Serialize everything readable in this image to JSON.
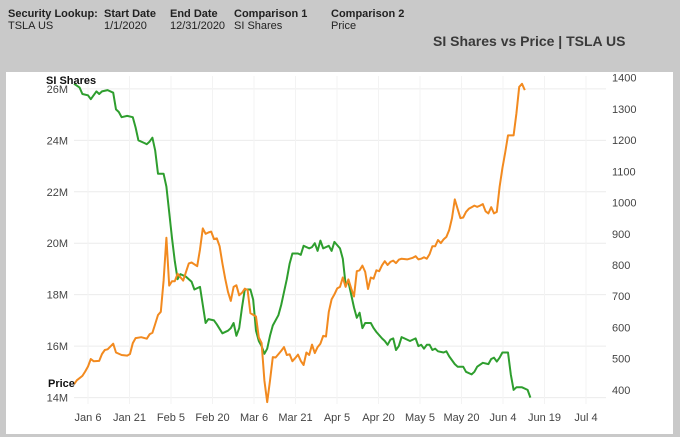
{
  "header": {
    "fields": [
      {
        "label": "Security Lookup:",
        "value": "TSLA US"
      },
      {
        "label": "Start Date",
        "value": "1/1/2020"
      },
      {
        "label": "End Date",
        "value": "12/31/2020"
      },
      {
        "label": "Comparison 1",
        "value": "SI Shares"
      },
      {
        "label": "Comparison 2",
        "value": "Price"
      }
    ]
  },
  "chart_data": {
    "type": "line",
    "title": "SI Shares vs Price | TSLA US",
    "xlabel": "",
    "x_ticks": [
      "Jan 6",
      "Jan 21",
      "Feb 5",
      "Feb 20",
      "Mar 6",
      "Mar 21",
      "Apr 5",
      "Apr 20",
      "May 5",
      "May 20",
      "Jun 4",
      "Jun 19",
      "Jul 4"
    ],
    "x_range_days": [
      0,
      190
    ],
    "left_axis": {
      "label": "SI Shares",
      "ticks": [
        "26M",
        "24M",
        "22M",
        "20M",
        "18M",
        "16M",
        "14M"
      ],
      "ylim": [
        13.75,
        26.5
      ],
      "unit": "M"
    },
    "right_axis": {
      "label": "Price",
      "ticks": [
        "1400",
        "1300",
        "1200",
        "1100",
        "1000",
        "900",
        "800",
        "700",
        "600",
        "500",
        "400"
      ],
      "ylim": [
        355,
        1405
      ]
    },
    "series": [
      {
        "name": "SI Shares",
        "axis": "left",
        "color": "#2e9e2e",
        "points": [
          [
            0,
            26.2
          ],
          [
            2,
            26.05
          ],
          [
            3,
            25.8
          ],
          [
            5,
            25.75
          ],
          [
            6,
            25.6
          ],
          [
            8,
            25.9
          ],
          [
            9,
            25.8
          ],
          [
            10,
            25.9
          ],
          [
            12,
            25.95
          ],
          [
            14,
            25.85
          ],
          [
            15,
            25.2
          ],
          [
            16,
            25.1
          ],
          [
            17,
            24.9
          ],
          [
            19,
            24.95
          ],
          [
            21,
            24.9
          ],
          [
            22,
            24.5
          ],
          [
            23,
            24.0
          ],
          [
            25,
            23.9
          ],
          [
            26,
            23.85
          ],
          [
            27,
            23.95
          ],
          [
            28,
            24.1
          ],
          [
            29,
            23.6
          ],
          [
            30,
            22.7
          ],
          [
            32,
            22.7
          ],
          [
            33,
            22.2
          ],
          [
            34,
            21.2
          ],
          [
            35,
            20.2
          ],
          [
            36,
            19.3
          ],
          [
            37,
            18.6
          ],
          [
            38,
            18.8
          ],
          [
            40,
            18.7
          ],
          [
            42,
            18.5
          ],
          [
            43,
            18.2
          ],
          [
            45,
            18.3
          ],
          [
            46,
            17.6
          ],
          [
            47,
            16.9
          ],
          [
            48,
            17.05
          ],
          [
            50,
            17.0
          ],
          [
            51,
            16.85
          ],
          [
            53,
            16.5
          ],
          [
            55,
            16.6
          ],
          [
            56,
            16.7
          ],
          [
            57,
            16.9
          ],
          [
            58,
            16.4
          ],
          [
            59,
            16.7
          ],
          [
            60,
            17.5
          ],
          [
            61,
            18.2
          ],
          [
            63,
            18.2
          ],
          [
            64,
            17.8
          ],
          [
            65,
            16.6
          ],
          [
            66,
            16.2
          ],
          [
            67,
            16.0
          ],
          [
            68,
            15.7
          ],
          [
            69,
            15.9
          ],
          [
            70,
            16.4
          ],
          [
            71,
            16.8
          ],
          [
            73,
            17.2
          ],
          [
            74,
            17.6
          ],
          [
            75,
            18.1
          ],
          [
            76,
            18.6
          ],
          [
            77,
            19.2
          ],
          [
            78,
            19.6
          ],
          [
            80,
            19.6
          ],
          [
            81,
            19.55
          ],
          [
            82,
            19.9
          ],
          [
            84,
            19.8
          ],
          [
            85,
            19.85
          ],
          [
            86,
            20.0
          ],
          [
            87,
            19.7
          ],
          [
            88,
            20.1
          ],
          [
            89,
            19.8
          ],
          [
            91,
            19.9
          ],
          [
            92,
            19.7
          ],
          [
            93,
            20.05
          ],
          [
            95,
            19.8
          ],
          [
            96,
            19.4
          ],
          [
            97,
            18.4
          ],
          [
            98,
            18.5
          ],
          [
            100,
            17.5
          ],
          [
            101,
            17.1
          ],
          [
            102,
            17.3
          ],
          [
            103,
            16.7
          ],
          [
            104,
            16.9
          ],
          [
            106,
            16.9
          ],
          [
            107,
            16.7
          ],
          [
            108,
            16.55
          ],
          [
            110,
            16.3
          ],
          [
            111,
            16.2
          ],
          [
            112,
            16.05
          ],
          [
            113,
            16.25
          ],
          [
            114,
            16.3
          ],
          [
            115,
            15.85
          ],
          [
            116,
            16.0
          ],
          [
            117,
            16.35
          ],
          [
            118,
            16.3
          ],
          [
            120,
            16.2
          ],
          [
            122,
            16.3
          ],
          [
            123,
            16.0
          ],
          [
            124,
            16.05
          ],
          [
            125,
            15.9
          ],
          [
            126,
            16.05
          ],
          [
            127,
            16.05
          ],
          [
            128,
            15.85
          ],
          [
            129,
            15.9
          ],
          [
            130,
            15.8
          ],
          [
            132,
            15.75
          ],
          [
            133,
            15.8
          ],
          [
            134,
            15.6
          ],
          [
            136,
            15.3
          ],
          [
            137,
            15.2
          ],
          [
            139,
            15.2
          ],
          [
            140,
            15.0
          ],
          [
            142,
            14.9
          ],
          [
            143,
            15.0
          ],
          [
            144,
            15.2
          ],
          [
            146,
            15.35
          ],
          [
            148,
            15.3
          ],
          [
            149,
            15.5
          ],
          [
            150,
            15.55
          ],
          [
            151,
            15.4
          ],
          [
            152,
            15.55
          ],
          [
            153,
            15.75
          ],
          [
            155,
            15.75
          ],
          [
            156,
            14.9
          ],
          [
            157,
            14.3
          ],
          [
            158,
            14.4
          ],
          [
            160,
            14.4
          ],
          [
            162,
            14.3
          ],
          [
            163,
            14.0
          ]
        ]
      },
      {
        "name": "Price",
        "axis": "right",
        "color": "#f28a1f",
        "points": [
          [
            0,
            418
          ],
          [
            1,
            431
          ],
          [
            3,
            445
          ],
          [
            4,
            459
          ],
          [
            5,
            475
          ],
          [
            6,
            499
          ],
          [
            7,
            492
          ],
          [
            9,
            493
          ],
          [
            10,
            515
          ],
          [
            11,
            528
          ],
          [
            12,
            530
          ],
          [
            14,
            548
          ],
          [
            15,
            520
          ],
          [
            17,
            512
          ],
          [
            19,
            510
          ],
          [
            20,
            515
          ],
          [
            21,
            550
          ],
          [
            22,
            566
          ],
          [
            24,
            569
          ],
          [
            26,
            564
          ],
          [
            27,
            578
          ],
          [
            28,
            583
          ],
          [
            29,
            611
          ],
          [
            30,
            640
          ],
          [
            31,
            650
          ],
          [
            32,
            750
          ],
          [
            33,
            887
          ],
          [
            34,
            734
          ],
          [
            35,
            748
          ],
          [
            36,
            748
          ],
          [
            37,
            772
          ],
          [
            39,
            750
          ],
          [
            40,
            778
          ],
          [
            41,
            805
          ],
          [
            42,
            808
          ],
          [
            44,
            796
          ],
          [
            45,
            850
          ],
          [
            46,
            917
          ],
          [
            47,
            900
          ],
          [
            48,
            904
          ],
          [
            49,
            907
          ],
          [
            50,
            883
          ],
          [
            51,
            885
          ],
          [
            52,
            860
          ],
          [
            53,
            805
          ],
          [
            54,
            756
          ],
          [
            55,
            714
          ],
          [
            56,
            685
          ],
          [
            57,
            730
          ],
          [
            58,
            735
          ],
          [
            59,
            703
          ],
          [
            60,
            711
          ],
          [
            61,
            724
          ],
          [
            62,
            720
          ],
          [
            63,
            646
          ],
          [
            65,
            635
          ],
          [
            66,
            568
          ],
          [
            67,
            550
          ],
          [
            68,
            430
          ],
          [
            69,
            361
          ],
          [
            70,
            430
          ],
          [
            71,
            505
          ],
          [
            72,
            504
          ],
          [
            74,
            525
          ],
          [
            75,
            537
          ],
          [
            76,
            512
          ],
          [
            77,
            514
          ],
          [
            78,
            492
          ],
          [
            79,
            502
          ],
          [
            80,
            513
          ],
          [
            81,
            493
          ],
          [
            82,
            480
          ],
          [
            83,
            520
          ],
          [
            84,
            512
          ],
          [
            85,
            545
          ],
          [
            86,
            518
          ],
          [
            87,
            537
          ],
          [
            88,
            548
          ],
          [
            89,
            573
          ],
          [
            90,
            571
          ],
          [
            91,
            650
          ],
          [
            92,
            690
          ],
          [
            93,
            706
          ],
          [
            94,
            725
          ],
          [
            95,
            730
          ],
          [
            96,
            760
          ],
          [
            97,
            730
          ],
          [
            98,
            754
          ],
          [
            99,
            725
          ],
          [
            100,
            699
          ],
          [
            101,
            780
          ],
          [
            102,
            783
          ],
          [
            103,
            798
          ],
          [
            104,
            778
          ],
          [
            105,
            723
          ],
          [
            106,
            760
          ],
          [
            107,
            756
          ],
          [
            108,
            783
          ],
          [
            109,
            780
          ],
          [
            110,
            799
          ],
          [
            111,
            812
          ],
          [
            112,
            800
          ],
          [
            113,
            810
          ],
          [
            114,
            814
          ],
          [
            115,
            806
          ],
          [
            116,
            817
          ],
          [
            117,
            820
          ],
          [
            119,
            818
          ],
          [
            121,
            823
          ],
          [
            122,
            828
          ],
          [
            123,
            818
          ],
          [
            124,
            820
          ],
          [
            125,
            825
          ],
          [
            126,
            820
          ],
          [
            127,
            835
          ],
          [
            128,
            860
          ],
          [
            129,
            860
          ],
          [
            130,
            880
          ],
          [
            131,
            870
          ],
          [
            132,
            882
          ],
          [
            133,
            890
          ],
          [
            134,
            912
          ],
          [
            135,
            950
          ],
          [
            136,
            1010
          ],
          [
            137,
            980
          ],
          [
            138,
            950
          ],
          [
            139,
            952
          ],
          [
            140,
            970
          ],
          [
            141,
            980
          ],
          [
            142,
            985
          ],
          [
            143,
            990
          ],
          [
            144,
            986
          ],
          [
            145,
            990
          ],
          [
            146,
            995
          ],
          [
            147,
            972
          ],
          [
            148,
            965
          ],
          [
            149,
            985
          ],
          [
            150,
            965
          ],
          [
            151,
            970
          ],
          [
            152,
            1050
          ],
          [
            153,
            1110
          ],
          [
            154,
            1160
          ],
          [
            155,
            1215
          ],
          [
            157,
            1215
          ],
          [
            158,
            1285
          ],
          [
            159,
            1370
          ],
          [
            160,
            1380
          ],
          [
            161,
            1360
          ]
        ]
      }
    ]
  }
}
